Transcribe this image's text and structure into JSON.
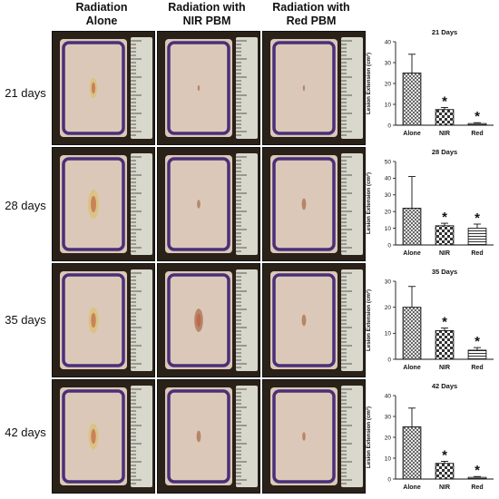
{
  "column_headers": [
    {
      "line1": "Radiation",
      "line2": "Alone"
    },
    {
      "line1": "Radiation with",
      "line2": "NIR PBM"
    },
    {
      "line1": "Radiation with",
      "line2": "Red PBM"
    }
  ],
  "rows": [
    {
      "label": "21 days"
    },
    {
      "label": "28 days"
    },
    {
      "label": "35 days"
    },
    {
      "label": "42 days"
    }
  ],
  "colors": {
    "skin": "#dcc8b8",
    "marker": "#4a2f78",
    "ruler": "#d8d8cc",
    "bar_stroke": "#111111"
  },
  "chart_data": [
    {
      "type": "bar",
      "title": "21 Days",
      "categories": [
        "Alone",
        "NIR",
        "Red"
      ],
      "values": [
        25,
        7.5,
        0.8
      ],
      "errors": [
        9,
        1,
        0.4
      ],
      "significance": [
        "",
        "*",
        "*"
      ],
      "ylabel": "Lesion Extension (cm²)",
      "ylim": [
        0,
        40
      ],
      "yticks": [
        0,
        10,
        20,
        30,
        40
      ]
    },
    {
      "type": "bar",
      "title": "28 Days",
      "categories": [
        "Alone",
        "NIR",
        "Red"
      ],
      "values": [
        22,
        11.5,
        10
      ],
      "errors": [
        19,
        1.5,
        2.5
      ],
      "significance": [
        "",
        "*",
        "*"
      ],
      "ylabel": "Lesion Extension (cm²)",
      "ylim": [
        0,
        50
      ],
      "yticks": [
        0,
        10,
        20,
        30,
        40,
        50
      ]
    },
    {
      "type": "bar",
      "title": "35 Days",
      "categories": [
        "Alone",
        "NIR",
        "Red"
      ],
      "values": [
        20,
        11,
        3.5
      ],
      "errors": [
        8,
        1,
        1
      ],
      "significance": [
        "",
        "*",
        "*"
      ],
      "ylabel": "Lesion Extension (cm²)",
      "ylim": [
        0,
        30
      ],
      "yticks": [
        0,
        10,
        20,
        30
      ]
    },
    {
      "type": "bar",
      "title": "42 Days",
      "categories": [
        "Alone",
        "NIR",
        "Red"
      ],
      "values": [
        25,
        7.5,
        0.8
      ],
      "errors": [
        9,
        1,
        0.4
      ],
      "significance": [
        "",
        "*",
        "*"
      ],
      "ylabel": "Lesion Extension (cm²)",
      "ylim": [
        0,
        40
      ],
      "yticks": [
        0,
        10,
        20,
        30,
        40
      ]
    }
  ]
}
